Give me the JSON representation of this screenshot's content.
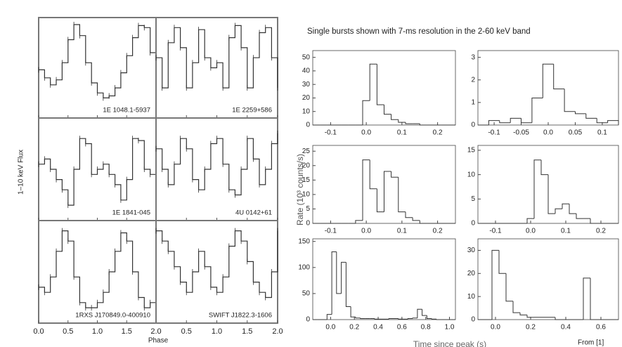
{
  "chart_data": [
    {
      "type": "line",
      "ylabel": "1–10 keV Flux",
      "xlabel": "Phase",
      "ylim": [
        0,
        1
      ],
      "panels": [
        {
          "label": "1E 1048.1-5937",
          "xlim": [
            0,
            2
          ],
          "x": [
            0,
            0.1,
            0.2,
            0.3,
            0.4,
            0.5,
            0.6,
            0.7,
            0.8,
            0.9,
            1,
            1.1,
            1.2,
            1.3,
            1.4,
            1.5,
            1.6,
            1.7,
            1.8,
            1.9,
            2
          ],
          "values": [
            0.48,
            0.4,
            0.33,
            0.38,
            0.55,
            0.78,
            0.93,
            0.82,
            0.55,
            0.35,
            0.25,
            0.2,
            0.22,
            0.3,
            0.45,
            0.62,
            0.8,
            0.92,
            0.9,
            0.65,
            0.45
          ]
        },
        {
          "label": "1E 2259+586",
          "xlim": [
            0,
            2
          ],
          "x": [
            0,
            0.1,
            0.2,
            0.3,
            0.4,
            0.5,
            0.6,
            0.7,
            0.8,
            0.9,
            1,
            1.1,
            1.2,
            1.3,
            1.4,
            1.5,
            1.6,
            1.7,
            1.8,
            1.9,
            2
          ],
          "values": [
            0.6,
            0.3,
            0.75,
            0.9,
            0.7,
            0.3,
            0.55,
            0.88,
            0.6,
            0.5,
            0.55,
            0.3,
            0.8,
            0.92,
            0.7,
            0.3,
            0.6,
            0.85,
            0.9,
            0.6,
            0.3
          ]
        },
        {
          "label": "1E 1841-045",
          "xlim": [
            0,
            2
          ],
          "x": [
            0,
            0.1,
            0.2,
            0.3,
            0.4,
            0.5,
            0.6,
            0.7,
            0.8,
            0.9,
            1,
            1.1,
            1.2,
            1.3,
            1.4,
            1.5,
            1.6,
            1.7,
            1.8,
            1.9,
            2
          ],
          "values": [
            0.55,
            0.6,
            0.5,
            0.4,
            0.3,
            0.15,
            0.5,
            0.8,
            0.75,
            0.45,
            0.5,
            0.55,
            0.45,
            0.35,
            0.2,
            0.4,
            0.8,
            0.78,
            0.5,
            0.45,
            0.6
          ]
        },
        {
          "label": "4U 0142+61",
          "xlim": [
            0,
            2
          ],
          "x": [
            0,
            0.1,
            0.2,
            0.3,
            0.4,
            0.5,
            0.6,
            0.7,
            0.8,
            0.9,
            1,
            1.1,
            1.2,
            1.3,
            1.4,
            1.5,
            1.6,
            1.7,
            1.8,
            1.9,
            2
          ],
          "values": [
            0.7,
            0.5,
            0.35,
            0.55,
            0.8,
            0.7,
            0.4,
            0.3,
            0.5,
            0.75,
            0.8,
            0.55,
            0.3,
            0.25,
            0.5,
            0.8,
            0.6,
            0.35,
            0.5,
            0.75,
            0.85
          ]
        },
        {
          "label": "1RXS J170849.0-400910",
          "xlim": [
            0,
            2
          ],
          "x": [
            0,
            0.1,
            0.2,
            0.3,
            0.4,
            0.5,
            0.6,
            0.7,
            0.8,
            0.9,
            1,
            1.1,
            1.2,
            1.3,
            1.4,
            1.5,
            1.6,
            1.7,
            1.8,
            1.9,
            2
          ],
          "values": [
            0.35,
            0.3,
            0.45,
            0.7,
            0.9,
            0.8,
            0.45,
            0.2,
            0.15,
            0.15,
            0.2,
            0.3,
            0.5,
            0.7,
            0.88,
            0.8,
            0.5,
            0.25,
            0.15,
            0.2,
            0.35
          ],
          "xticks": [
            {
              "value": 0,
              "label": "0.0"
            },
            {
              "value": 0.5,
              "label": "0.5"
            },
            {
              "value": 1,
              "label": "1.0"
            },
            {
              "value": 1.5,
              "label": "1.5"
            },
            {
              "value": 2,
              "label": "2.0"
            }
          ]
        },
        {
          "label": "SWIFT J1822.3-1606",
          "xlim": [
            0,
            2
          ],
          "x": [
            0,
            0.1,
            0.2,
            0.3,
            0.4,
            0.5,
            0.6,
            0.7,
            0.8,
            0.9,
            1,
            1.1,
            1.2,
            1.3,
            1.4,
            1.5,
            1.6,
            1.7,
            1.8,
            1.9,
            2
          ],
          "values": [
            0.9,
            0.8,
            0.7,
            0.55,
            0.4,
            0.3,
            0.5,
            0.7,
            0.55,
            0.35,
            0.3,
            0.45,
            0.75,
            0.9,
            0.8,
            0.6,
            0.4,
            0.3,
            0.25,
            0.5,
            0.9
          ],
          "xticks": [
            {
              "value": 0.5,
              "label": "0.5"
            },
            {
              "value": 1,
              "label": "1.0"
            },
            {
              "value": 1.5,
              "label": "1.5"
            },
            {
              "value": 2,
              "label": "2.0"
            }
          ]
        }
      ]
    },
    {
      "type": "histogram",
      "title": "Single bursts shown with 7-ms resolution in the 2-60 keV band",
      "ylabel": "Rate (10³ counts/s)",
      "xlabel": "Time since peak (s)",
      "note": "From [1]",
      "panels": [
        {
          "xlim": [
            -0.15,
            0.25
          ],
          "ylim": [
            0,
            55
          ],
          "yticks": [
            0,
            10,
            20,
            30,
            40,
            50
          ],
          "xticks": [
            {
              "value": -0.1,
              "label": "-0.1"
            },
            {
              "value": 0,
              "label": "0.0"
            },
            {
              "value": 0.1,
              "label": "0.1"
            },
            {
              "value": 0.2,
              "label": "0.2"
            }
          ],
          "bins": [
            -0.15,
            -0.13,
            -0.11,
            -0.09,
            -0.07,
            -0.05,
            -0.03,
            -0.01,
            0.01,
            0.03,
            0.05,
            0.07,
            0.09,
            0.11,
            0.13,
            0.15,
            0.17,
            0.19,
            0.21,
            0.23,
            0.25
          ],
          "values": [
            0,
            0,
            0,
            0,
            0,
            0,
            0,
            18,
            45,
            15,
            8,
            4,
            2,
            1,
            1,
            0,
            0,
            0,
            0,
            0
          ]
        },
        {
          "xlim": [
            -0.13,
            0.13
          ],
          "ylim": [
            0,
            3.3
          ],
          "yticks": [
            0,
            1,
            2,
            3
          ],
          "xticks": [
            {
              "value": -0.1,
              "label": "-0.1"
            },
            {
              "value": -0.05,
              "label": "-0.05"
            },
            {
              "value": 0,
              "label": "0.0"
            },
            {
              "value": 0.05,
              "label": "0.05"
            },
            {
              "value": 0.1,
              "label": "0.1"
            }
          ],
          "bins": [
            -0.13,
            -0.11,
            -0.09,
            -0.07,
            -0.05,
            -0.03,
            -0.01,
            0.01,
            0.03,
            0.05,
            0.07,
            0.09,
            0.11,
            0.13
          ],
          "values": [
            0,
            0.2,
            0.1,
            0.3,
            0.1,
            1.2,
            2.7,
            1.6,
            0.6,
            0.5,
            0.3,
            0.1,
            0.2
          ]
        },
        {
          "xlim": [
            -0.15,
            0.25
          ],
          "ylim": [
            0,
            27
          ],
          "yticks": [
            0,
            5,
            10,
            15,
            20,
            25
          ],
          "xticks": [
            {
              "value": -0.1,
              "label": "-0.1"
            },
            {
              "value": 0,
              "label": "0.0"
            },
            {
              "value": 0.1,
              "label": "0.1"
            },
            {
              "value": 0.2,
              "label": "0.2"
            }
          ],
          "bins": [
            -0.15,
            -0.13,
            -0.11,
            -0.09,
            -0.07,
            -0.05,
            -0.03,
            -0.01,
            0.01,
            0.03,
            0.05,
            0.07,
            0.09,
            0.11,
            0.13,
            0.15,
            0.17,
            0.19,
            0.21,
            0.23,
            0.25
          ],
          "values": [
            0,
            0,
            0,
            0,
            0,
            0,
            1,
            22,
            12,
            4,
            18,
            16,
            4,
            2,
            1,
            0,
            0,
            0,
            0,
            0
          ]
        },
        {
          "xlim": [
            -0.15,
            0.25
          ],
          "ylim": [
            0,
            16
          ],
          "yticks": [
            0,
            5,
            10,
            15
          ],
          "xticks": [
            {
              "value": -0.1,
              "label": "-0.1"
            },
            {
              "value": 0,
              "label": "0.0"
            },
            {
              "value": 0.1,
              "label": "0.1"
            },
            {
              "value": 0.2,
              "label": "0.2"
            }
          ],
          "bins": [
            -0.15,
            -0.13,
            -0.11,
            -0.09,
            -0.07,
            -0.05,
            -0.03,
            -0.01,
            0.01,
            0.03,
            0.05,
            0.07,
            0.09,
            0.11,
            0.13,
            0.15,
            0.17,
            0.19,
            0.21,
            0.23,
            0.25
          ],
          "values": [
            0,
            0,
            0,
            0,
            0,
            0,
            0,
            1,
            13,
            10,
            2,
            3,
            4,
            2,
            1,
            1,
            0,
            0,
            0,
            0
          ]
        },
        {
          "xlim": [
            -0.15,
            1.05
          ],
          "ylim": [
            0,
            155
          ],
          "yticks": [
            0,
            50,
            100,
            150
          ],
          "xticks": [
            {
              "value": 0,
              "label": "0.0"
            },
            {
              "value": 0.2,
              "label": "0.2"
            },
            {
              "value": 0.4,
              "label": "0.4"
            },
            {
              "value": 0.6,
              "label": "0.6"
            },
            {
              "value": 0.8,
              "label": "0.8"
            },
            {
              "value": 1,
              "label": "1.0"
            }
          ],
          "bins": [
            -0.15,
            -0.11,
            -0.07,
            -0.03,
            0.01,
            0.05,
            0.09,
            0.13,
            0.17,
            0.21,
            0.25,
            0.29,
            0.33,
            0.37,
            0.41,
            0.45,
            0.49,
            0.53,
            0.57,
            0.61,
            0.65,
            0.69,
            0.73,
            0.77,
            0.81,
            0.85,
            0.89,
            0.93,
            0.97,
            1.01,
            1.05
          ],
          "values": [
            0,
            0,
            0,
            10,
            130,
            50,
            110,
            25,
            5,
            3,
            2,
            2,
            2,
            1,
            1,
            1,
            2,
            2,
            1,
            1,
            2,
            3,
            20,
            8,
            2,
            1,
            0,
            0,
            0,
            0
          ]
        },
        {
          "xlim": [
            -0.1,
            0.7
          ],
          "ylim": [
            0,
            35
          ],
          "yticks": [
            0,
            10,
            20,
            30
          ],
          "xticks": [
            {
              "value": 0,
              "label": "0.0"
            },
            {
              "value": 0.2,
              "label": "0.2"
            },
            {
              "value": 0.4,
              "label": "0.4"
            },
            {
              "value": 0.6,
              "label": "0.6"
            }
          ],
          "bins": [
            -0.1,
            -0.06,
            -0.02,
            0.02,
            0.06,
            0.1,
            0.14,
            0.18,
            0.22,
            0.26,
            0.3,
            0.34,
            0.38,
            0.42,
            0.46,
            0.5,
            0.54,
            0.58,
            0.62,
            0.66,
            0.7
          ],
          "values": [
            0,
            0,
            30,
            20,
            8,
            3,
            2,
            1,
            1,
            1,
            1,
            0,
            0,
            0,
            0,
            18,
            0,
            0,
            0,
            0
          ]
        }
      ]
    }
  ]
}
